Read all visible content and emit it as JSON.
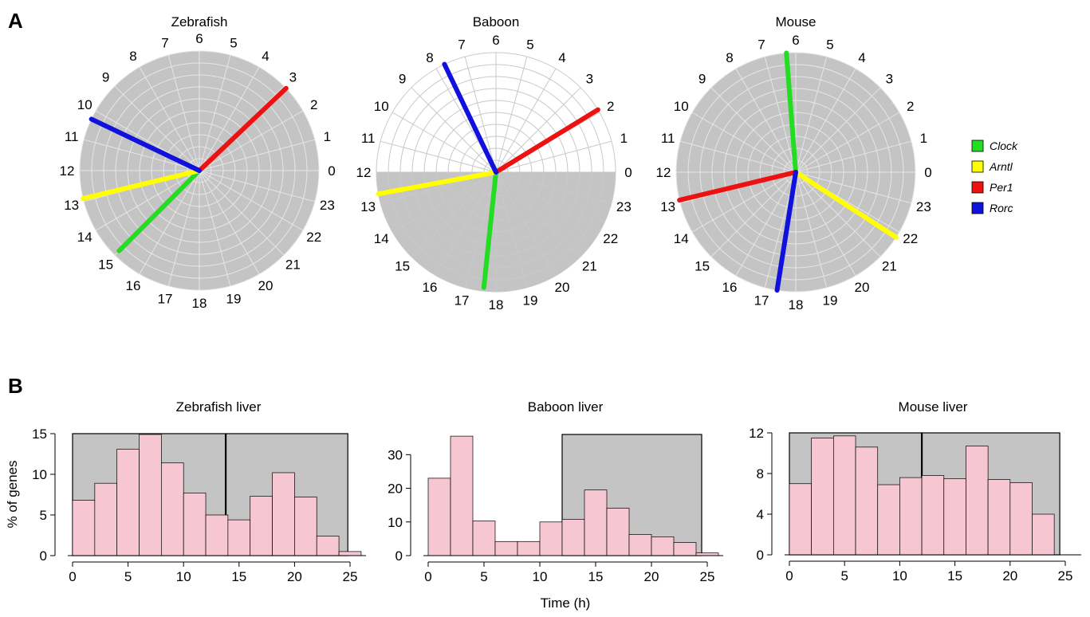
{
  "panels": {
    "a": "A",
    "b": "B"
  },
  "legend": [
    {
      "gene": "Clock",
      "color": "#22dd22"
    },
    {
      "gene": "Arntl",
      "color": "#ffff00"
    },
    {
      "gene": "Per1",
      "color": "#ee1111"
    },
    {
      "gene": "Rorc",
      "color": "#1111dd"
    }
  ],
  "chart_data": [
    {
      "type": "polar",
      "title": "Zebrafish",
      "hours": [
        "0",
        "1",
        "2",
        "3",
        "4",
        "5",
        "6",
        "7",
        "8",
        "9",
        "10",
        "11",
        "12",
        "13",
        "14",
        "15",
        "16",
        "17",
        "18",
        "19",
        "20",
        "21",
        "22",
        "23"
      ],
      "shading": "full",
      "phases": [
        {
          "gene": "Clock",
          "hour": 15.0,
          "magnitude": 0.95
        },
        {
          "gene": "Arntl",
          "hour": 12.9,
          "magnitude": 1.0
        },
        {
          "gene": "Per1",
          "hour": 2.9,
          "magnitude": 1.0
        },
        {
          "gene": "Rorc",
          "hour": 10.3,
          "magnitude": 1.0
        }
      ]
    },
    {
      "type": "polar",
      "title": "Baboon",
      "hours": [
        "0",
        "1",
        "2",
        "3",
        "4",
        "5",
        "6",
        "7",
        "8",
        "9",
        "10",
        "11",
        "12",
        "13",
        "14",
        "15",
        "16",
        "17",
        "18",
        "19",
        "20",
        "21",
        "22",
        "23"
      ],
      "shading": "lower-half",
      "phases": [
        {
          "gene": "Clock",
          "hour": 17.6,
          "magnitude": 0.97
        },
        {
          "gene": "Arntl",
          "hour": 12.7,
          "magnitude": 1.0
        },
        {
          "gene": "Per1",
          "hour": 2.1,
          "magnitude": 1.0
        },
        {
          "gene": "Rorc",
          "hour": 7.7,
          "magnitude": 1.0
        }
      ]
    },
    {
      "type": "polar",
      "title": "Mouse",
      "hours": [
        "0",
        "1",
        "2",
        "3",
        "4",
        "5",
        "6",
        "7",
        "8",
        "9",
        "10",
        "11",
        "12",
        "13",
        "14",
        "15",
        "16",
        "17",
        "18",
        "19",
        "20",
        "21",
        "22",
        "23"
      ],
      "shading": "full",
      "phases": [
        {
          "gene": "Clock",
          "hour": 6.3,
          "magnitude": 1.0
        },
        {
          "gene": "Arntl",
          "hour": 21.8,
          "magnitude": 1.0
        },
        {
          "gene": "Per1",
          "hour": 12.9,
          "magnitude": 1.0
        },
        {
          "gene": "Rorc",
          "hour": 17.4,
          "magnitude": 1.0
        }
      ]
    },
    {
      "type": "bar",
      "title": "Zebrafish liver",
      "ylabel": "% of genes",
      "xlabel": "",
      "xlim": [
        0,
        25
      ],
      "ylim": [
        0,
        15
      ],
      "xticks": [
        0,
        5,
        10,
        15,
        20,
        25
      ],
      "yticks": [
        0,
        5,
        10,
        15
      ],
      "bin_width": 2,
      "shaded_ranges": [
        [
          0,
          13.8
        ],
        [
          13.8,
          24.8
        ]
      ],
      "divider": 13.8,
      "bins": [
        0,
        2,
        4,
        6,
        8,
        10,
        12,
        14,
        16,
        18,
        20,
        22,
        24
      ],
      "values": [
        6.8,
        8.9,
        13.1,
        14.9,
        11.4,
        7.7,
        5.0,
        4.4,
        7.3,
        10.2,
        7.2,
        2.4,
        0.5
      ]
    },
    {
      "type": "bar",
      "title": "Baboon liver",
      "ylabel": "",
      "xlabel": "Time (h)",
      "xlim": [
        0,
        25
      ],
      "ylim": [
        0,
        36
      ],
      "xticks": [
        0,
        5,
        10,
        15,
        20,
        25
      ],
      "yticks": [
        0,
        10,
        20,
        30
      ],
      "bin_width": 2,
      "shaded_ranges": [
        [
          12,
          24.5
        ]
      ],
      "divider": null,
      "bins": [
        0,
        2,
        4,
        6,
        8,
        10,
        12,
        14,
        16,
        18,
        20,
        22,
        24
      ],
      "values": [
        23.0,
        35.5,
        10.3,
        4.2,
        4.2,
        10.0,
        10.8,
        19.5,
        14.1,
        6.3,
        5.6,
        3.9,
        0.8
      ]
    },
    {
      "type": "bar",
      "title": "Mouse liver",
      "ylabel": "",
      "xlabel": "",
      "xlim": [
        0,
        25
      ],
      "ylim": [
        0,
        12
      ],
      "xticks": [
        0,
        5,
        10,
        15,
        20,
        25
      ],
      "yticks": [
        0,
        4,
        8,
        12
      ],
      "bin_width": 2,
      "shaded_ranges": [
        [
          0,
          12
        ],
        [
          12,
          24.5
        ]
      ],
      "divider": 12,
      "bins": [
        0,
        2,
        4,
        6,
        8,
        10,
        12,
        14,
        16,
        18,
        20,
        22
      ],
      "values": [
        7.0,
        11.5,
        11.7,
        10.6,
        6.9,
        7.6,
        7.8,
        7.5,
        10.7,
        7.4,
        7.1,
        4.0
      ]
    }
  ]
}
